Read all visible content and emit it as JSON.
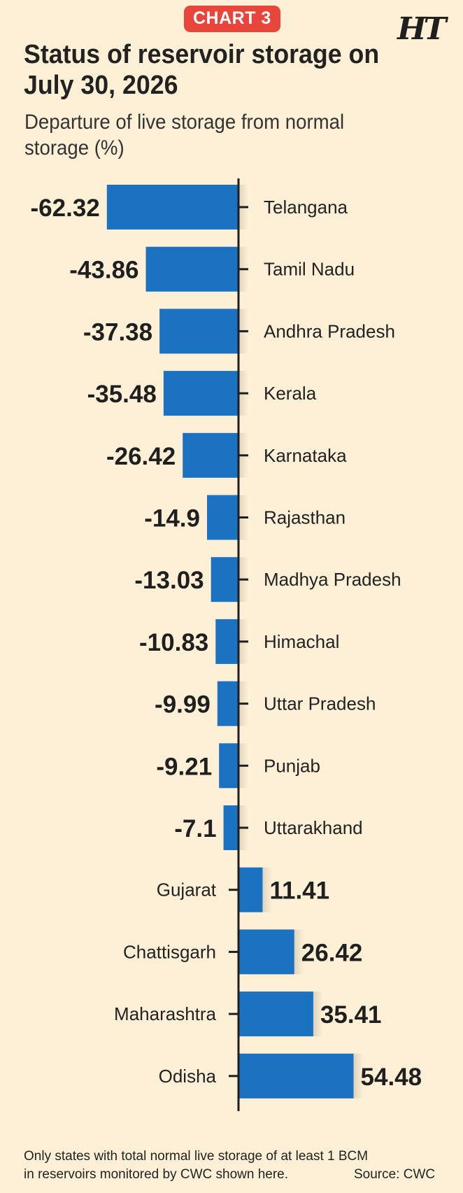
{
  "header": {
    "badge": "CHART 3",
    "logo": "HT"
  },
  "chart_data": {
    "type": "bar",
    "orientation": "horizontal",
    "title": "Status of reservoir storage on July 30, 2026",
    "subtitle": "Departure of live storage from normal storage (%)",
    "categories": [
      "Telangana",
      "Tamil Nadu",
      "Andhra Pradesh",
      "Kerala",
      "Karnataka",
      "Rajasthan",
      "Madhya Pradesh",
      "Himachal",
      "Uttar Pradesh",
      "Punjab",
      "Uttarakhand",
      "Gujarat",
      "Chattisgarh",
      "Maharashtra",
      "Odisha"
    ],
    "values": [
      -62.32,
      -43.86,
      -37.38,
      -35.48,
      -26.42,
      -14.9,
      -13.03,
      -10.83,
      -9.99,
      -9.21,
      -7.1,
      11.41,
      26.42,
      35.41,
      54.48
    ],
    "value_labels": [
      "-62.32",
      "-43.86",
      "-37.38",
      "-35.48",
      "-26.42",
      "-14.9",
      "-13.03",
      "-10.83",
      "-9.99",
      "-9.21",
      "-7.1",
      "11.41",
      "26.42",
      "35.41",
      "54.48"
    ],
    "bar_color": "#1a72c0",
    "grid": false,
    "legend": "none"
  },
  "footnote": {
    "note_line1": "Only states with total normal live storage of at least 1 BCM",
    "note_line2": "in reservoirs monitored by CWC shown here.",
    "source": "Source: CWC"
  }
}
